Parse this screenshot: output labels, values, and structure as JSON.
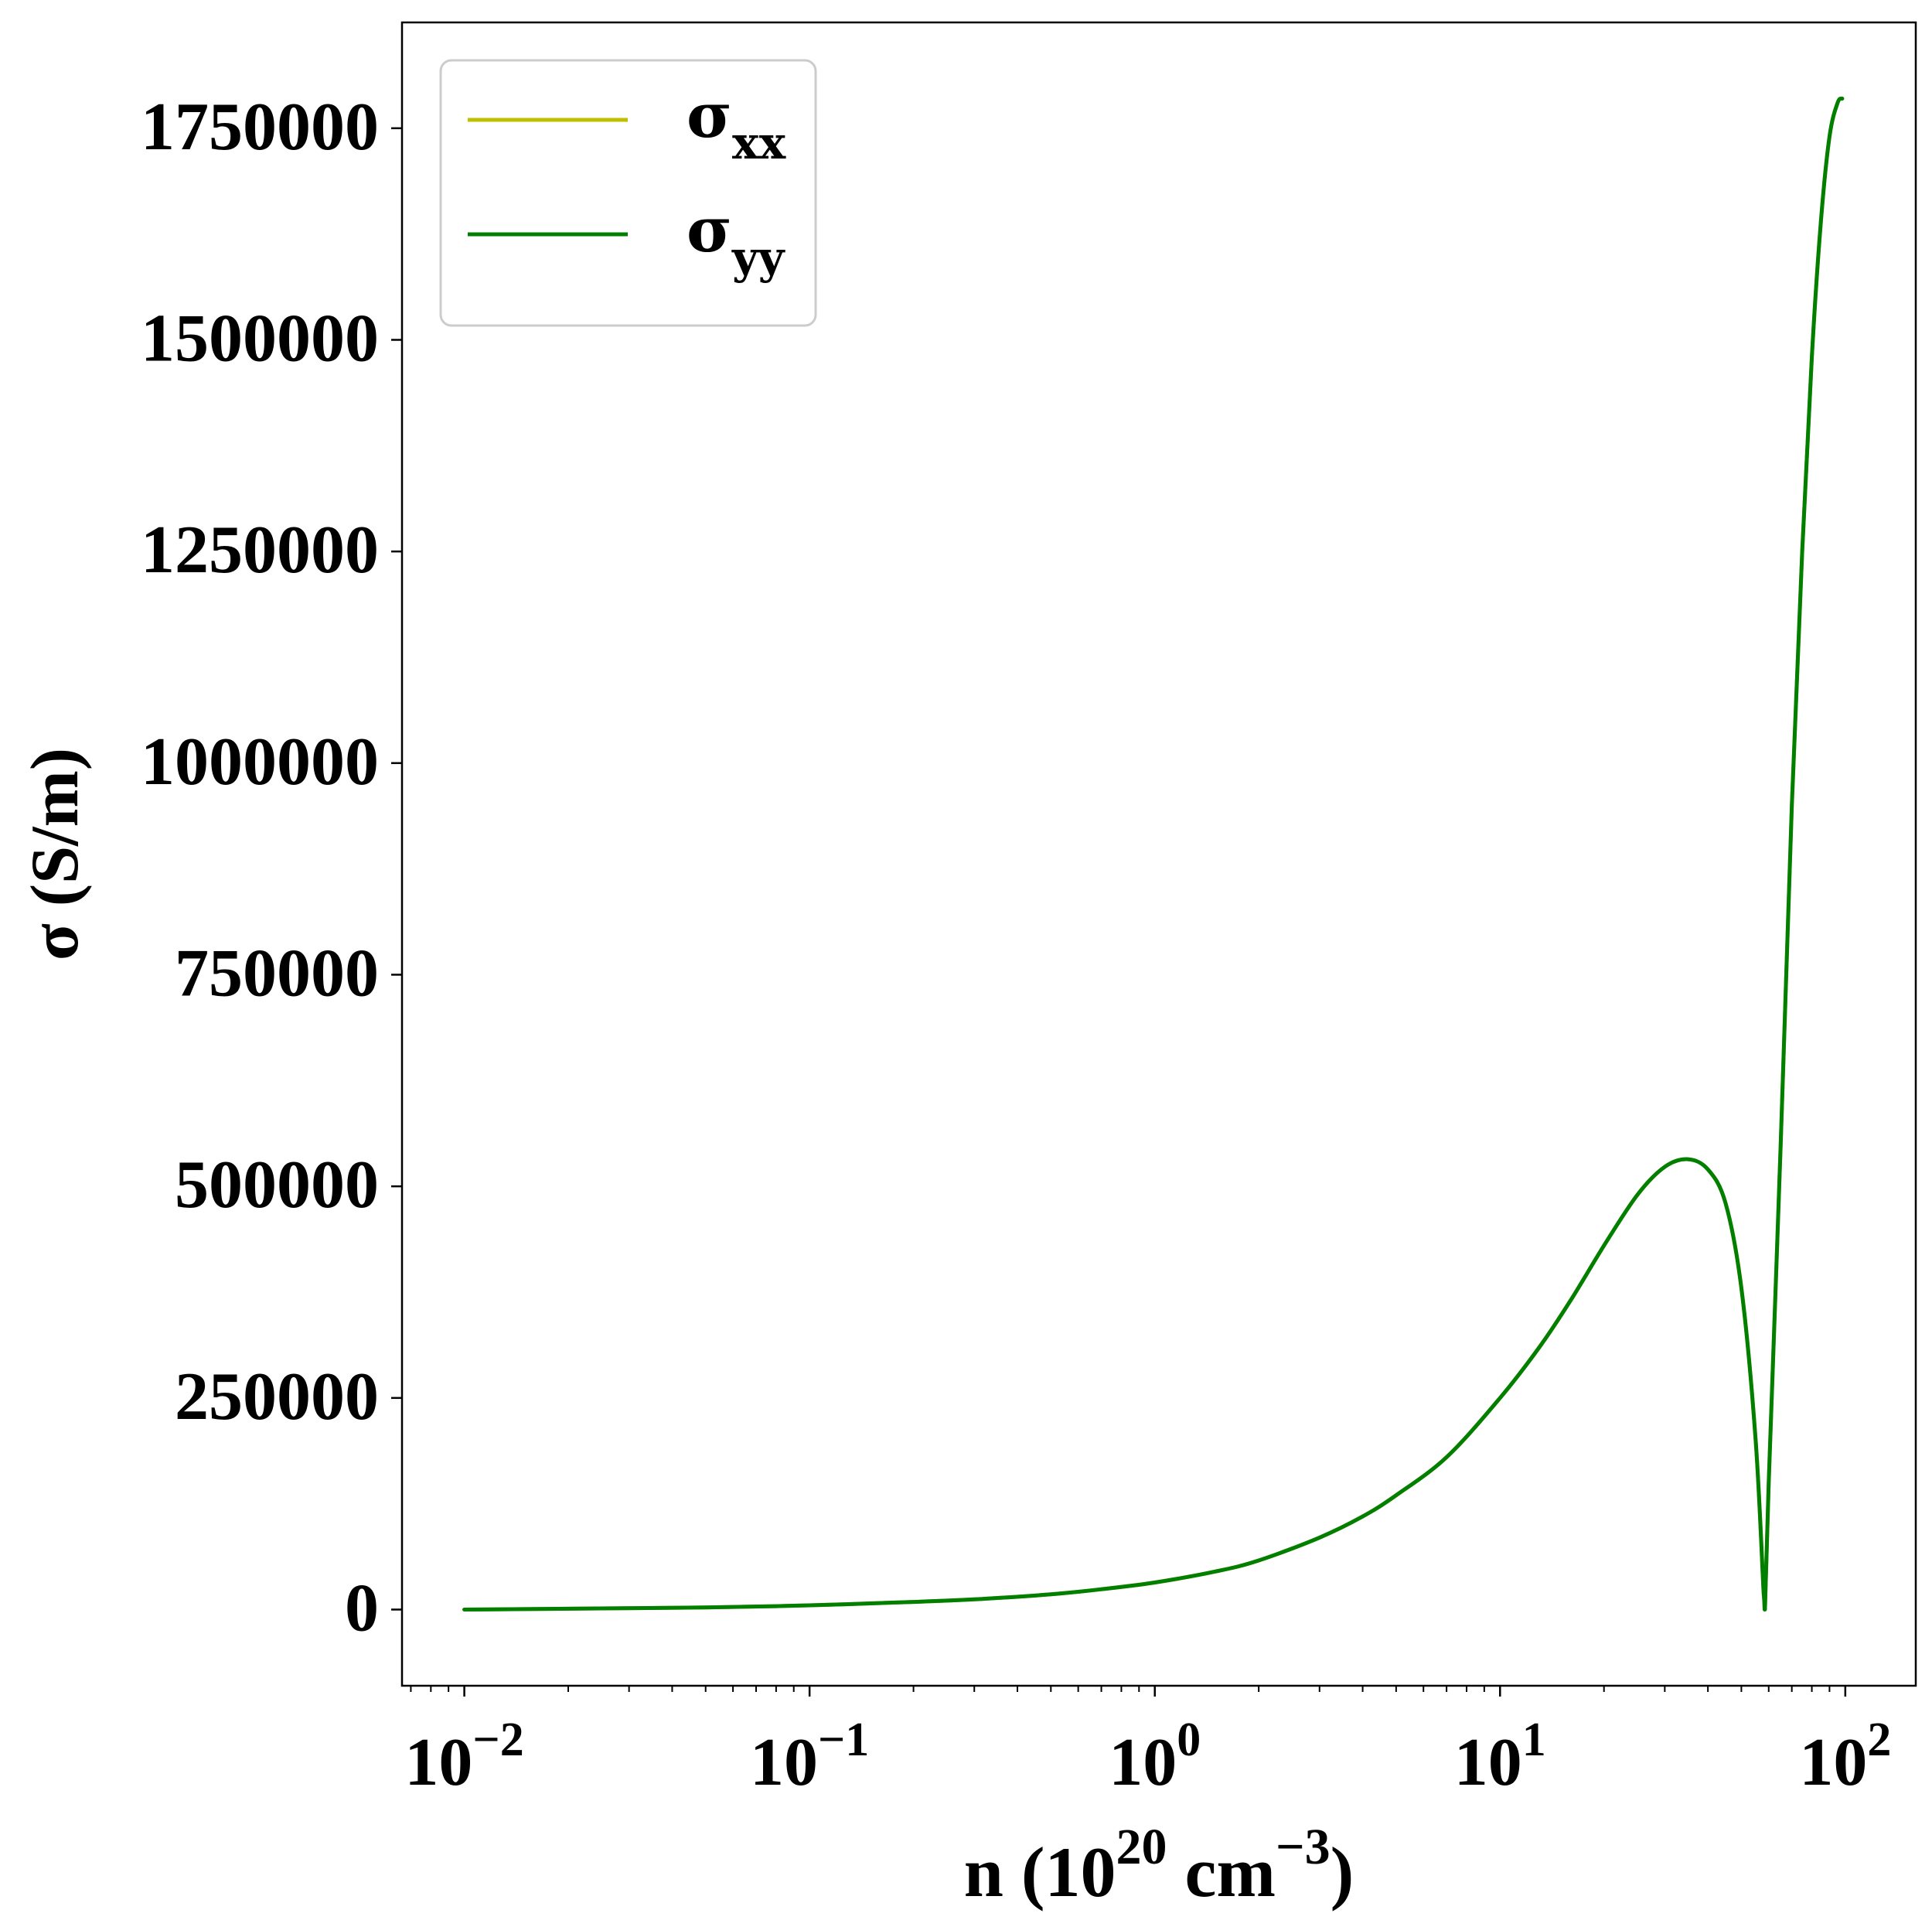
{
  "chart_data": {
    "type": "line",
    "xscale": "log",
    "xlim": [
      0.0066,
      160
    ],
    "ylim": [
      -90000,
      1875000
    ],
    "xlabel": {
      "base": "n (10",
      "sup1": "20",
      "mid": " cm",
      "sup2": "−3",
      "end": ")"
    },
    "ylabel": "σ (S/m)",
    "grid": false,
    "legend_placement": "top-left",
    "y_ticks": [
      {
        "value": 0,
        "label": "0"
      },
      {
        "value": 250000,
        "label": "250000"
      },
      {
        "value": 500000,
        "label": "500000"
      },
      {
        "value": 750000,
        "label": "750000"
      },
      {
        "value": 1000000,
        "label": "1000000"
      },
      {
        "value": 1250000,
        "label": "1250000"
      },
      {
        "value": 1500000,
        "label": "1500000"
      },
      {
        "value": 1750000,
        "label": "1750000"
      }
    ],
    "x_ticks": [
      {
        "value": 0.01,
        "base": "10",
        "exp": "−2"
      },
      {
        "value": 0.1,
        "base": "10",
        "exp": "−1"
      },
      {
        "value": 1,
        "base": "10",
        "exp": "0"
      },
      {
        "value": 10,
        "base": "10",
        "exp": "1"
      },
      {
        "value": 100,
        "base": "10",
        "exp": "2"
      }
    ],
    "series": [
      {
        "name": "σ",
        "subscript": "xx",
        "color": "#bfbf00",
        "x": [
          0.01,
          0.02,
          0.05,
          0.1,
          0.2,
          0.3,
          0.5,
          0.7,
          1.0,
          1.5,
          2.0,
          3.0,
          4.0,
          5.0,
          7.0,
          10.0,
          13.0,
          16.0,
          20.0,
          25.0,
          30.0,
          35.0,
          40.0,
          45.0,
          50.0,
          55.0,
          58.0,
          58.5,
          60.0,
          65.0,
          70.0,
          75.0,
          80.0,
          85.0,
          90.0,
          95.0,
          98.0
        ],
        "y": [
          0,
          1000,
          2500,
          5000,
          9000,
          12000,
          18000,
          24000,
          32000,
          45000,
          58000,
          85000,
          110000,
          135000,
          180000,
          250000,
          310000,
          365000,
          430000,
          490000,
          523000,
          532000,
          520000,
          480000,
          380000,
          200000,
          20000,
          0,
          150000,
          550000,
          950000,
          1250000,
          1480000,
          1640000,
          1740000,
          1780000,
          1785000
        ]
      },
      {
        "name": "σ",
        "subscript": "yy",
        "color": "#007f00",
        "x": [
          0.01,
          0.02,
          0.05,
          0.1,
          0.2,
          0.3,
          0.5,
          0.7,
          1.0,
          1.5,
          2.0,
          3.0,
          4.0,
          5.0,
          7.0,
          10.0,
          13.0,
          16.0,
          20.0,
          25.0,
          30.0,
          35.0,
          40.0,
          45.0,
          50.0,
          55.0,
          58.0,
          58.5,
          60.0,
          65.0,
          70.0,
          75.0,
          80.0,
          85.0,
          90.0,
          95.0,
          98.0
        ],
        "y": [
          0,
          1000,
          2500,
          5000,
          9000,
          12000,
          18000,
          24000,
          32000,
          45000,
          58000,
          85000,
          110000,
          135000,
          180000,
          250000,
          310000,
          365000,
          430000,
          490000,
          523000,
          532000,
          520000,
          480000,
          380000,
          200000,
          20000,
          0,
          150000,
          550000,
          950000,
          1250000,
          1480000,
          1640000,
          1740000,
          1780000,
          1785000
        ]
      }
    ]
  }
}
